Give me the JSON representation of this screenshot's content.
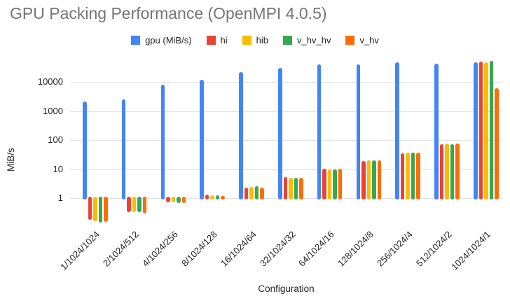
{
  "chart_data": {
    "type": "bar",
    "title": "GPU Packing Performance (OpenMPI 4.0.5)",
    "xlabel": "Configuration",
    "ylabel": "MiB/s",
    "y_scale": "log",
    "grid": true,
    "legend_position": "top",
    "ylim": [
      0.13,
      57000
    ],
    "y_ticks": [
      1,
      10,
      100,
      1000,
      10000
    ],
    "categories": [
      "1/1024/1024",
      "2/1024/512",
      "4/1024/256",
      "8/1024/128",
      "16/1024/64",
      "32/1024/32",
      "64/1024/16",
      "128/1024/8",
      "256/1024/4",
      "512/1024/2",
      "1024/1024/1"
    ],
    "series": [
      {
        "name": "gpu (MiB/s)",
        "color": "#4285F4",
        "values": [
          2100,
          2500,
          8000,
          12000,
          22000,
          31000,
          40000,
          42000,
          49000,
          43000,
          48000
        ]
      },
      {
        "name": "hi",
        "color": "#EA4335",
        "values": [
          0.18,
          0.33,
          0.7,
          1.3,
          2.3,
          5.2,
          10.5,
          19,
          35,
          74,
          52000
        ]
      },
      {
        "name": "hib",
        "color": "#FBBC04",
        "values": [
          0.16,
          0.32,
          0.7,
          1.25,
          2.4,
          5.0,
          10,
          20,
          38,
          77,
          49000
        ]
      },
      {
        "name": "v_hv_hv",
        "color": "#34A853",
        "values": [
          0.14,
          0.32,
          0.68,
          1.25,
          2.6,
          5.0,
          10,
          20,
          37,
          72,
          53000
        ]
      },
      {
        "name": "v_hv",
        "color": "#FF6D01",
        "values": [
          0.15,
          0.3,
          0.68,
          1.2,
          2.3,
          5.1,
          10.5,
          20,
          38,
          76,
          6300
        ]
      }
    ]
  }
}
